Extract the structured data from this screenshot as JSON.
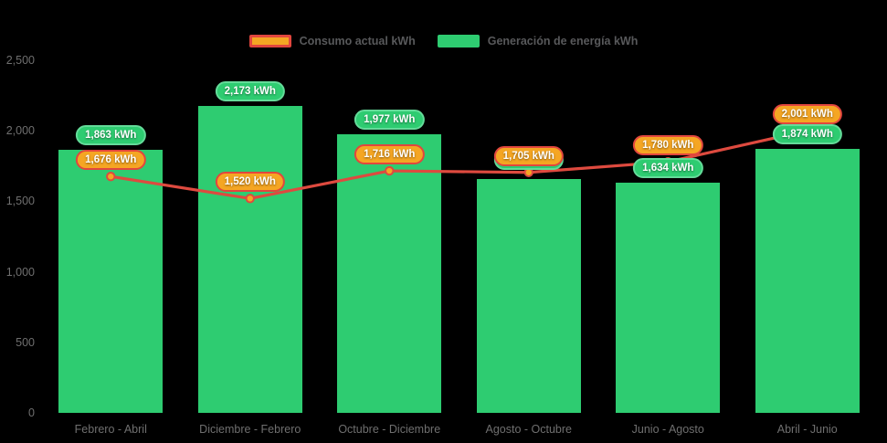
{
  "chart_data": {
    "type": "bar",
    "subtype": "bar-with-line-overlay",
    "background": "#000000",
    "categories": [
      "Febrero - Abril",
      "Diciembre - Febrero",
      "Octubre - Diciembre",
      "Agosto - Octubre",
      "Junio - Agosto",
      "Abril - Junio"
    ],
    "series": [
      {
        "name": "Consumo actual kWh",
        "type": "line",
        "line_color": "#DE4A3F",
        "marker_fill": "#F5A623",
        "marker_stroke": "#DE4A3F",
        "values": [
          1676,
          1520,
          1716,
          1705,
          1780,
          2001
        ],
        "data_labels": [
          "1,676 kWh",
          "1,520 kWh",
          "1,716 kWh",
          "1,705 kWh",
          "1,780 kWh",
          "2,001 kWh"
        ],
        "label_fill": "#F5A623",
        "label_border": "#E2463E"
      },
      {
        "name": "Generación de energía kWh",
        "type": "bar",
        "bar_color": "#2ECC71",
        "values": [
          1863,
          2173,
          1977,
          1655,
          1634,
          1874
        ],
        "data_labels": [
          "1,863 kWh",
          "2,173 kWh",
          "1,977 kWh",
          "1,655 kWh",
          "1,634 kWh",
          "1,874 kWh"
        ],
        "label_fill": "#2ECC71",
        "label_border": "#64DB99",
        "label_dy": [
          0,
          0,
          0,
          -5,
          0,
          0
        ],
        "occluded_label_indices": [
          3
        ],
        "estimated_indices": [
          3
        ]
      }
    ],
    "ylim": [
      0,
      2500
    ],
    "yticks": [
      {
        "value": 0,
        "label": "0"
      },
      {
        "value": 500,
        "label": "500"
      },
      {
        "value": 1000,
        "label": "1,000"
      },
      {
        "value": 1500,
        "label": "1,500"
      },
      {
        "value": 2000,
        "label": "2,000"
      },
      {
        "value": 2500,
        "label": "2,500"
      }
    ],
    "xlabel": "",
    "ylabel": "",
    "grid": false,
    "legend_position": "top",
    "axis_text_color": "#6F6F6F",
    "legend_text_color": "#58595B",
    "data_label_text_color": "#FFFFFF"
  }
}
